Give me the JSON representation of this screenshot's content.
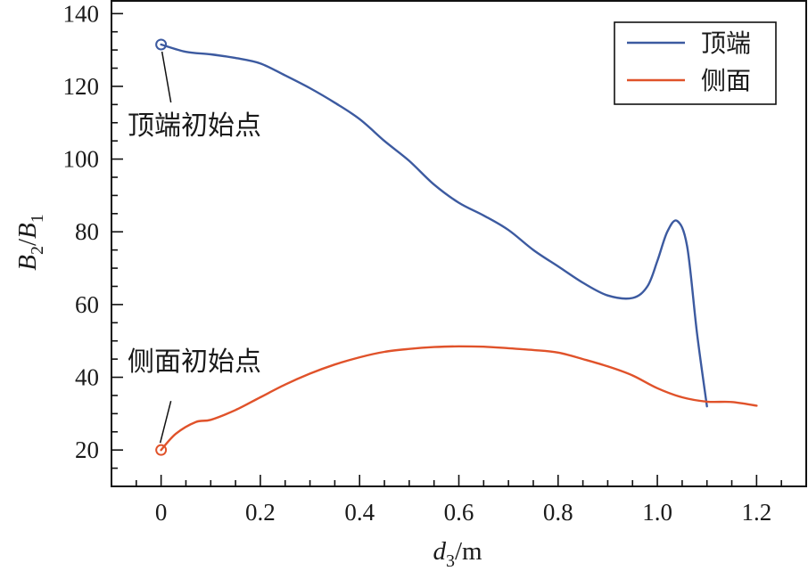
{
  "chart_data": {
    "type": "line",
    "title": "",
    "xlabel": "d_3/m",
    "xlabel_parts": {
      "var": "d",
      "sub": "3",
      "unit": "/m"
    },
    "ylabel": "B_2/B_1",
    "ylabel_parts": {
      "num": "B",
      "num_sub": "2",
      "slash": "/",
      "den": "B",
      "den_sub": "1"
    },
    "xlim": [
      -0.1,
      1.3
    ],
    "ylim": [
      10,
      143.5
    ],
    "xticks": [
      0,
      0.2,
      0.4,
      0.6,
      0.8,
      1.0,
      1.2
    ],
    "xtick_labels": [
      "0",
      "0.2",
      "0.4",
      "0.6",
      "0.8",
      "1.0",
      "1.2"
    ],
    "x_minor_step": 0.05,
    "yticks": [
      20,
      40,
      60,
      80,
      100,
      120,
      140
    ],
    "ytick_labels": [
      "20",
      "40",
      "60",
      "80",
      "100",
      "120",
      "140"
    ],
    "y_minor_step": 5,
    "grid": false,
    "legend_position": "upper right",
    "series": [
      {
        "name": "顶端",
        "color": "#3c5aa0",
        "x": [
          0,
          0.05,
          0.1,
          0.15,
          0.2,
          0.25,
          0.3,
          0.35,
          0.4,
          0.45,
          0.5,
          0.55,
          0.6,
          0.65,
          0.7,
          0.75,
          0.8,
          0.85,
          0.9,
          0.95,
          0.98,
          1.0,
          1.02,
          1.04,
          1.06,
          1.08,
          1.1
        ],
        "values": [
          131.5,
          129.5,
          128.8,
          127.8,
          126.3,
          123,
          119.5,
          115.5,
          111,
          105,
          99.5,
          93,
          88,
          84.5,
          80.5,
          75,
          70.5,
          66,
          62.5,
          61.8,
          65,
          72,
          80,
          83,
          76,
          52,
          32
        ]
      },
      {
        "name": "侧面",
        "color": "#e0522a",
        "x": [
          0,
          0.03,
          0.07,
          0.1,
          0.15,
          0.2,
          0.25,
          0.3,
          0.35,
          0.4,
          0.45,
          0.5,
          0.55,
          0.6,
          0.65,
          0.7,
          0.75,
          0.8,
          0.85,
          0.9,
          0.95,
          1.0,
          1.05,
          1.1,
          1.15,
          1.2
        ],
        "values": [
          20,
          24.5,
          27.7,
          28.3,
          31,
          34.5,
          38,
          41,
          43.5,
          45.5,
          47,
          47.8,
          48.3,
          48.5,
          48.4,
          48,
          47.5,
          46.8,
          45,
          43,
          40.5,
          37,
          34.5,
          33.3,
          33.2,
          32.2
        ]
      }
    ],
    "annotations": [
      {
        "text": "顶端初始点",
        "point": [
          0,
          131.5
        ],
        "series": "顶端",
        "marker": "open-circle"
      },
      {
        "text": "侧面初始点",
        "point": [
          0,
          20
        ],
        "series": "侧面",
        "marker": "open-circle"
      }
    ]
  }
}
